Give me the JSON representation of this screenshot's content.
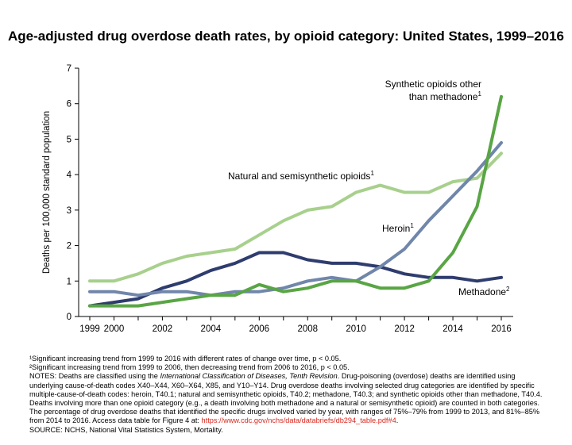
{
  "chart_data": {
    "type": "line",
    "title": "Age-adjusted drug overdose death rates, by opioid category: United States, 1999–2016",
    "ylabel": "Deaths per 100,000 standard population",
    "xlabel": "",
    "xlim": [
      1999,
      2016
    ],
    "ylim": [
      0,
      7
    ],
    "x_ticks": [
      "1999",
      "2000",
      "2002",
      "2004",
      "2006",
      "2008",
      "2010",
      "2012",
      "2014",
      "2016"
    ],
    "y_ticks": [
      "0",
      "1",
      "2",
      "3",
      "4",
      "5",
      "6",
      "7"
    ],
    "grid": false,
    "x": [
      1999,
      2000,
      2001,
      2002,
      2003,
      2004,
      2005,
      2006,
      2007,
      2008,
      2009,
      2010,
      2011,
      2012,
      2013,
      2014,
      2015,
      2016
    ],
    "series": [
      {
        "name": "Natural and semisynthetic opioids",
        "sup": "1",
        "color": "#a8d08d",
        "values": [
          1.0,
          1.0,
          1.2,
          1.5,
          1.7,
          1.8,
          1.9,
          2.3,
          2.7,
          3.0,
          3.1,
          3.5,
          3.7,
          3.5,
          3.5,
          3.8,
          3.9,
          4.6
        ]
      },
      {
        "name": "Methadone",
        "sup": "2",
        "color": "#2e3c6e",
        "values": [
          0.3,
          0.4,
          0.5,
          0.8,
          1.0,
          1.3,
          1.5,
          1.8,
          1.8,
          1.6,
          1.5,
          1.5,
          1.4,
          1.2,
          1.1,
          1.1,
          1.0,
          1.1
        ]
      },
      {
        "name": "Heroin",
        "sup": "1",
        "color": "#7086aa",
        "values": [
          0.7,
          0.7,
          0.6,
          0.7,
          0.7,
          0.6,
          0.7,
          0.7,
          0.8,
          1.0,
          1.1,
          1.0,
          1.4,
          1.9,
          2.7,
          3.4,
          4.1,
          4.9
        ]
      },
      {
        "name": "Synthetic opioids other than methadone",
        "name_line1": "Synthetic opioids other",
        "name_line2": "than methadone",
        "sup": "1",
        "color": "#59a545",
        "values": [
          0.3,
          0.3,
          0.3,
          0.4,
          0.5,
          0.6,
          0.6,
          0.9,
          0.7,
          0.8,
          1.0,
          1.0,
          0.8,
          0.8,
          1.0,
          1.8,
          3.1,
          6.2
        ]
      }
    ]
  },
  "notes": {
    "sig1": "¹Significant increasing trend from 1999 to 2016 with different rates of change over time, p < 0.05.",
    "sig2": "²Significant increasing trend from 1999 to 2006, then decreasing trend from 2006 to 2016, p < 0.05.",
    "notes_prefix": "NOTES: Deaths are classified using the ",
    "notes_italic": "International Classification of Diseases, Tenth Revision",
    "notes_body": ". Drug-poisoning (overdose) deaths are identified using underlying cause-of-death codes X40–X44, X60–X64, X85, and Y10–Y14. Drug overdose deaths involving selected drug categories are identified by specific multiple-cause-of-death codes:  heroin, T40.1; natural and semisynthetic opioids, T40.2;  methadone, T40.3; and synthetic opioids other than methadone, T40.4. Deaths involving more than one opioid category (e.g., a death involving both methadone and a natural or semisynthetic opioid) are counted in both categories. The percentage of drug overdose deaths that identified the specific drugs involved varied by year, with ranges of 75%–79% from 1999 to 2013, and 81%–85% from 2014 to 2016. Access data table for Figure 4 at: ",
    "link": "https://www.cdc.gov/nchs/data/databriefs/db294_table.pdf#4",
    "link_suffix": ".",
    "source": "SOURCE: NCHS, National Vital Statistics System, Mortality."
  }
}
